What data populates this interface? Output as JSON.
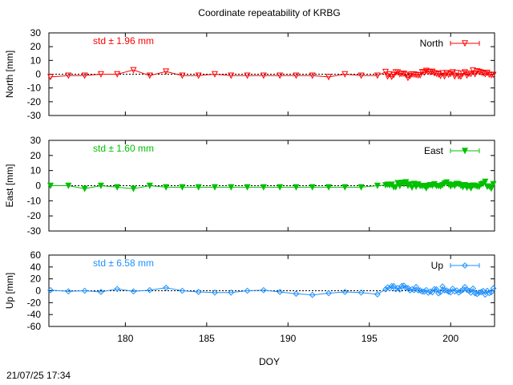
{
  "title": "Coordinate repeatability of KRBG",
  "timestamp": "21/07/25 17:34",
  "chart_data": {
    "type": "line",
    "xlabel": "DOY",
    "xlim": [
      175.3,
      202.7
    ],
    "xticks": [
      180,
      185,
      190,
      195,
      200
    ],
    "panels": [
      {
        "name": "North",
        "ylabel": "North [mm]",
        "ylim": [
          -30,
          30
        ],
        "yticks": [
          -30,
          -20,
          -10,
          0,
          10,
          20,
          30
        ],
        "std_label": "std ± 1.96 mm",
        "color": "#ff0000",
        "marker": "triangle-down-open",
        "sparse": [
          [
            175.4,
            -2
          ],
          [
            176.5,
            -1
          ],
          [
            177.5,
            -1
          ],
          [
            178.5,
            0
          ],
          [
            179.5,
            0
          ],
          [
            180.5,
            3
          ],
          [
            181.5,
            -1
          ],
          [
            182.5,
            2
          ],
          [
            183.5,
            -1
          ],
          [
            184.5,
            -1
          ],
          [
            185.5,
            0
          ],
          [
            186.5,
            -1
          ],
          [
            187.5,
            -1
          ],
          [
            188.5,
            -1
          ],
          [
            189.5,
            -1
          ],
          [
            190.5,
            -1
          ],
          [
            191.5,
            -1
          ],
          [
            192.5,
            -2
          ],
          [
            193.5,
            0
          ],
          [
            194.5,
            -1
          ],
          [
            195.5,
            -1
          ]
        ],
        "dense": {
          "x_start": 196.0,
          "x_end": 202.7,
          "step": 0.125,
          "amplitude": 3.2,
          "seed": 11
        }
      },
      {
        "name": "East",
        "ylabel": "East [mm]",
        "ylim": [
          -30,
          30
        ],
        "yticks": [
          -30,
          -20,
          -10,
          0,
          10,
          20,
          30
        ],
        "std_label": "std ± 1.60 mm",
        "color": "#00c000",
        "marker": "triangle-down-filled",
        "sparse": [
          [
            175.4,
            0
          ],
          [
            176.5,
            0
          ],
          [
            177.5,
            -2
          ],
          [
            178.5,
            0
          ],
          [
            179.5,
            -1
          ],
          [
            180.5,
            -2
          ],
          [
            181.5,
            0
          ],
          [
            182.5,
            -1
          ],
          [
            183.5,
            -1
          ],
          [
            184.5,
            -1
          ],
          [
            185.5,
            -1
          ],
          [
            186.5,
            -1
          ],
          [
            187.5,
            -1
          ],
          [
            188.5,
            -1
          ],
          [
            189.5,
            -1
          ],
          [
            190.5,
            -1
          ],
          [
            191.5,
            -1
          ],
          [
            192.5,
            -1
          ],
          [
            193.5,
            -1
          ],
          [
            194.5,
            -1
          ],
          [
            195.5,
            0
          ]
        ],
        "dense": {
          "x_start": 196.0,
          "x_end": 202.7,
          "step": 0.125,
          "amplitude": 2.6,
          "seed": 23
        }
      },
      {
        "name": "Up",
        "ylabel": "Up [mm]",
        "ylim": [
          -60,
          60
        ],
        "yticks": [
          -60,
          -40,
          -20,
          0,
          20,
          40,
          60
        ],
        "std_label": "std ± 6.58 mm",
        "color": "#1e90ff",
        "marker": "diamond-open",
        "sparse": [
          [
            175.4,
            1
          ],
          [
            176.5,
            -1
          ],
          [
            177.5,
            0
          ],
          [
            178.5,
            -2
          ],
          [
            179.5,
            3
          ],
          [
            180.5,
            -1
          ],
          [
            181.5,
            1
          ],
          [
            182.5,
            5
          ],
          [
            183.5,
            0
          ],
          [
            184.5,
            -2
          ],
          [
            185.5,
            -3
          ],
          [
            186.5,
            -3
          ],
          [
            187.5,
            0
          ],
          [
            188.5,
            1
          ],
          [
            189.5,
            -2
          ],
          [
            190.5,
            -5
          ],
          [
            191.5,
            -7
          ],
          [
            192.5,
            -4
          ],
          [
            193.5,
            -2
          ],
          [
            194.5,
            -3
          ],
          [
            195.5,
            -6
          ]
        ],
        "dense": {
          "x_start": 196.0,
          "x_end": 202.7,
          "step": 0.125,
          "amplitude": 8.5,
          "seed": 37
        }
      }
    ]
  }
}
